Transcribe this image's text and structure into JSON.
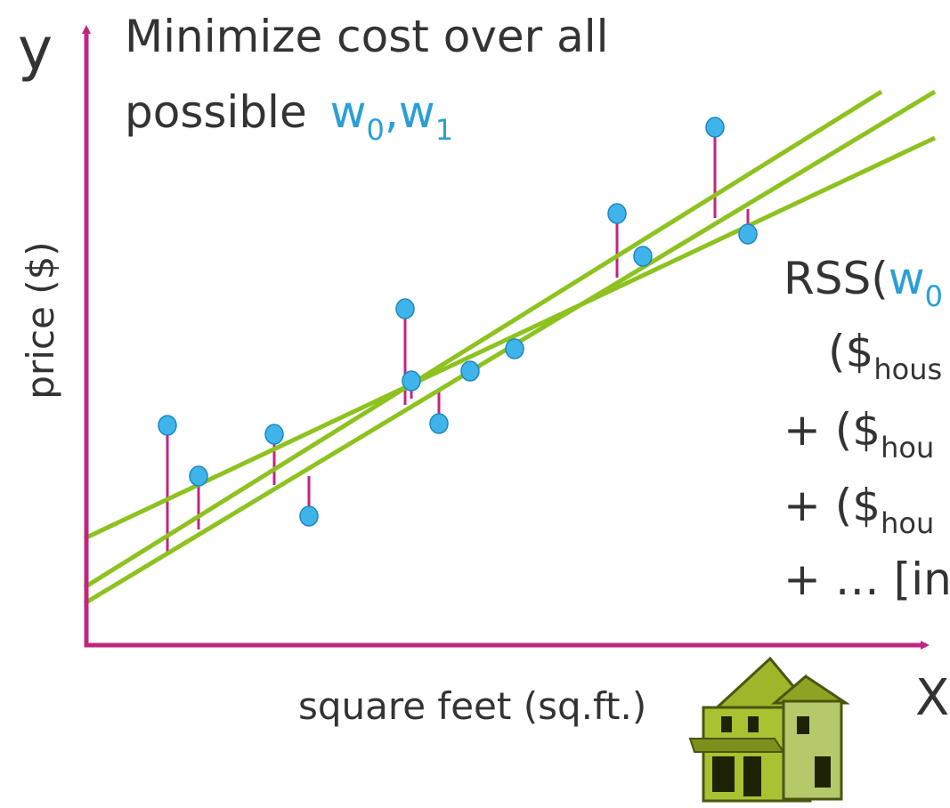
{
  "y_axis_symbol": "y",
  "x_axis_symbol": "X",
  "title": {
    "line1": "Minimize cost over all",
    "line2": "possible",
    "params": [
      {
        "symbol": "w",
        "subscript": "0"
      },
      {
        "symbol": "w",
        "subscript": "1"
      }
    ],
    "separator": ","
  },
  "y_label": "price ($)",
  "x_label": "square feet (sq.ft.)",
  "rss": [
    {
      "text": "RSS(",
      "symbol": "w",
      "subscript": "0"
    },
    {
      "text": "($",
      "subscript": "hous"
    },
    {
      "text": "+ ($",
      "subscript": "hou"
    },
    {
      "text": "+ ($",
      "subscript": "hou"
    },
    {
      "text": "+ … [in"
    }
  ]
}
